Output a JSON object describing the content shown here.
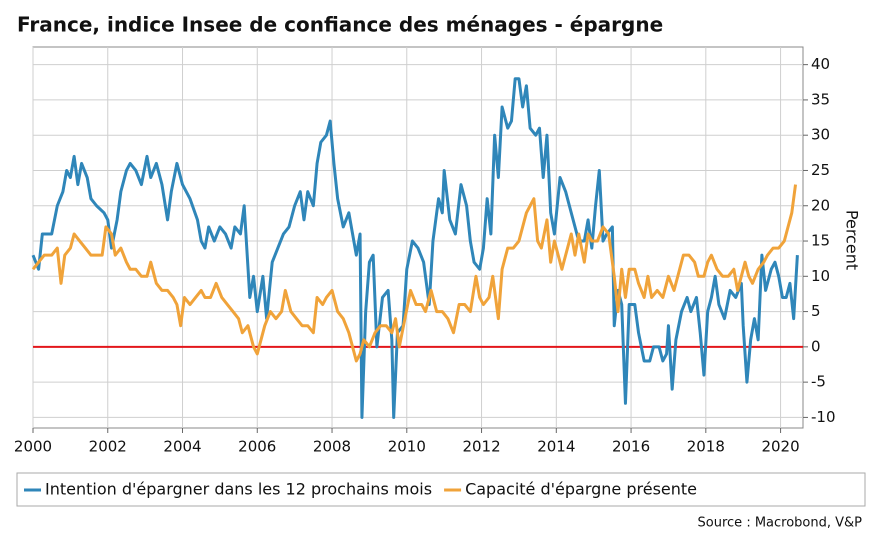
{
  "chart_data": {
    "type": "line",
    "title": "France, indice Insee de confiance des ménages - épargne",
    "y_axis_label": "Percent",
    "source": "Source : Macrobond, V&P",
    "xlim": [
      2000,
      2020.6
    ],
    "xticks": [
      2000,
      2002,
      2004,
      2006,
      2008,
      2010,
      2012,
      2014,
      2016,
      2018,
      2020
    ],
    "ylim": [
      -11.5,
      42.5
    ],
    "yticks": [
      -10,
      -5,
      0,
      5,
      10,
      15,
      20,
      25,
      30,
      35,
      40
    ],
    "grid": true,
    "y_axis_side": "right",
    "legend": "bottom",
    "reference_line": {
      "value": 0,
      "color": "#e3161b"
    },
    "series": [
      {
        "name": "Intention d'épargner dans les 12 prochains mois",
        "color": "#2f86b9",
        "x": [
          2000.0,
          2000.15,
          2000.25,
          2000.5,
          2000.65,
          2000.8,
          2000.9,
          2001.0,
          2001.1,
          2001.2,
          2001.3,
          2001.45,
          2001.55,
          2001.7,
          2001.9,
          2002.0,
          2002.1,
          2002.25,
          2002.35,
          2002.5,
          2002.6,
          2002.75,
          2002.9,
          2003.05,
          2003.15,
          2003.3,
          2003.45,
          2003.6,
          2003.7,
          2003.85,
          2004.0,
          2004.2,
          2004.4,
          2004.5,
          2004.6,
          2004.7,
          2004.85,
          2005.0,
          2005.15,
          2005.3,
          2005.4,
          2005.55,
          2005.65,
          2005.8,
          2005.9,
          2006.0,
          2006.15,
          2006.25,
          2006.4,
          2006.55,
          2006.7,
          2006.85,
          2007.0,
          2007.15,
          2007.25,
          2007.35,
          2007.5,
          2007.6,
          2007.7,
          2007.85,
          2007.95,
          2008.05,
          2008.15,
          2008.3,
          2008.45,
          2008.55,
          2008.65,
          2008.75,
          2008.8,
          2008.9,
          2009.0,
          2009.1,
          2009.2,
          2009.35,
          2009.5,
          2009.6,
          2009.65,
          2009.75,
          2009.9,
          2010.0,
          2010.15,
          2010.3,
          2010.45,
          2010.6,
          2010.7,
          2010.85,
          2010.95,
          2011.0,
          2011.15,
          2011.3,
          2011.45,
          2011.6,
          2011.7,
          2011.8,
          2011.95,
          2012.05,
          2012.15,
          2012.25,
          2012.35,
          2012.45,
          2012.55,
          2012.7,
          2012.8,
          2012.9,
          2013.0,
          2013.1,
          2013.2,
          2013.3,
          2013.45,
          2013.55,
          2013.65,
          2013.75,
          2013.85,
          2013.95,
          2014.1,
          2014.25,
          2014.35,
          2014.5,
          2014.6,
          2014.75,
          2014.85,
          2014.95,
          2015.05,
          2015.15,
          2015.25,
          2015.35,
          2015.5,
          2015.55,
          2015.65,
          2015.75,
          2015.85,
          2015.95,
          2016.1,
          2016.2,
          2016.35,
          2016.5,
          2016.6,
          2016.75,
          2016.85,
          2016.95,
          2017.0,
          2017.1,
          2017.2,
          2017.35,
          2017.5,
          2017.6,
          2017.75,
          2017.85,
          2017.95,
          2018.05,
          2018.15,
          2018.25,
          2018.35,
          2018.5,
          2018.65,
          2018.8,
          2018.95,
          2019.0,
          2019.1,
          2019.2,
          2019.3,
          2019.4,
          2019.5,
          2019.6,
          2019.75,
          2019.85,
          2019.95,
          2020.05,
          2020.15,
          2020.25,
          2020.35,
          2020.45
        ],
        "values": [
          13,
          11,
          16,
          16,
          20,
          22,
          25,
          24,
          27,
          23,
          26,
          24,
          21,
          20,
          19,
          18,
          14,
          18,
          22,
          25,
          26,
          25,
          23,
          27,
          24,
          26,
          23,
          18,
          22,
          26,
          23,
          21,
          18,
          15,
          14,
          17,
          15,
          17,
          16,
          14,
          17,
          16,
          20,
          7,
          10,
          5,
          10,
          4,
          12,
          14,
          16,
          17,
          20,
          22,
          18,
          22,
          20,
          26,
          29,
          30,
          32,
          26,
          21,
          17,
          19,
          16,
          13,
          16,
          -10,
          5,
          12,
          13,
          0,
          7,
          8,
          1,
          -10,
          2,
          3,
          11,
          15,
          14,
          12,
          6,
          15,
          21,
          19,
          25,
          18,
          16,
          23,
          20,
          15,
          12,
          11,
          14,
          21,
          16,
          30,
          24,
          34,
          31,
          32,
          38,
          38,
          34,
          37,
          31,
          30,
          31,
          24,
          30,
          19,
          16,
          24,
          22,
          20,
          17,
          15,
          15,
          18,
          14,
          20,
          25,
          15,
          16,
          17,
          3,
          8,
          6,
          -8,
          6,
          6,
          2,
          -2,
          -2,
          0,
          0,
          -2,
          -1,
          3,
          -6,
          1,
          5,
          7,
          5,
          7,
          2,
          -4,
          5,
          7,
          10,
          6,
          4,
          8,
          7,
          9,
          3,
          -5,
          1,
          4,
          1,
          13,
          8,
          11,
          12,
          10,
          7,
          7,
          9,
          4,
          13
        ]
      },
      {
        "name": "Capacité d'épargne présente",
        "color": "#f0a33a",
        "x": [
          2000.0,
          2000.15,
          2000.3,
          2000.5,
          2000.65,
          2000.75,
          2000.85,
          2001.0,
          2001.1,
          2001.25,
          2001.4,
          2001.55,
          2001.7,
          2001.85,
          2001.95,
          2002.1,
          2002.2,
          2002.35,
          2002.5,
          2002.6,
          2002.75,
          2002.9,
          2003.05,
          2003.15,
          2003.3,
          2003.45,
          2003.6,
          2003.75,
          2003.85,
          2003.95,
          2004.05,
          2004.2,
          2004.35,
          2004.5,
          2004.6,
          2004.75,
          2004.9,
          2005.05,
          2005.2,
          2005.35,
          2005.5,
          2005.6,
          2005.75,
          2005.9,
          2006.0,
          2006.1,
          2006.2,
          2006.35,
          2006.5,
          2006.65,
          2006.75,
          2006.9,
          2007.05,
          2007.2,
          2007.35,
          2007.5,
          2007.6,
          2007.75,
          2007.85,
          2008.0,
          2008.15,
          2008.3,
          2008.45,
          2008.55,
          2008.65,
          2008.75,
          2008.85,
          2009.0,
          2009.15,
          2009.3,
          2009.45,
          2009.6,
          2009.7,
          2009.8,
          2009.95,
          2010.1,
          2010.25,
          2010.4,
          2010.5,
          2010.65,
          2010.8,
          2010.95,
          2011.1,
          2011.25,
          2011.4,
          2011.55,
          2011.7,
          2011.85,
          2011.95,
          2012.05,
          2012.2,
          2012.3,
          2012.45,
          2012.55,
          2012.7,
          2012.85,
          2013.0,
          2013.1,
          2013.2,
          2013.3,
          2013.4,
          2013.5,
          2013.6,
          2013.75,
          2013.85,
          2013.95,
          2014.05,
          2014.15,
          2014.25,
          2014.4,
          2014.5,
          2014.6,
          2014.75,
          2014.85,
          2014.95,
          2015.1,
          2015.25,
          2015.4,
          2015.55,
          2015.65,
          2015.75,
          2015.85,
          2015.95,
          2016.1,
          2016.2,
          2016.35,
          2016.45,
          2016.55,
          2016.7,
          2016.85,
          2017.0,
          2017.15,
          2017.3,
          2017.4,
          2017.55,
          2017.7,
          2017.8,
          2017.95,
          2018.05,
          2018.15,
          2018.3,
          2018.45,
          2018.6,
          2018.75,
          2018.85,
          2018.95,
          2019.05,
          2019.15,
          2019.25,
          2019.4,
          2019.55,
          2019.65,
          2019.8,
          2019.95,
          2020.1,
          2020.2,
          2020.3,
          2020.4
        ],
        "values": [
          11,
          12,
          13,
          13,
          14,
          9,
          13,
          14,
          16,
          15,
          14,
          13,
          13,
          13,
          17,
          16,
          13,
          14,
          12,
          11,
          11,
          10,
          10,
          12,
          9,
          8,
          8,
          7,
          6,
          3,
          7,
          6,
          7,
          8,
          7,
          7,
          9,
          7,
          6,
          5,
          4,
          2,
          3,
          0,
          -1,
          1,
          3,
          5,
          4,
          5,
          8,
          5,
          4,
          3,
          3,
          2,
          7,
          6,
          7,
          8,
          5,
          4,
          2,
          0,
          -2,
          -1,
          1,
          0,
          2,
          3,
          3,
          2,
          4,
          0,
          4,
          8,
          6,
          6,
          5,
          8,
          5,
          5,
          4,
          2,
          6,
          6,
          5,
          10,
          7,
          6,
          7,
          10,
          4,
          11,
          14,
          14,
          15,
          17,
          19,
          20,
          21,
          15,
          14,
          18,
          12,
          15,
          13,
          11,
          13,
          16,
          13,
          16,
          12,
          16,
          15,
          15,
          17,
          16,
          10,
          5,
          11,
          7,
          11,
          11,
          9,
          7,
          10,
          7,
          8,
          7,
          10,
          8,
          11,
          13,
          13,
          12,
          10,
          10,
          12,
          13,
          11,
          10,
          10,
          11,
          8,
          10,
          12,
          10,
          9,
          11,
          12,
          13,
          14,
          14,
          15,
          17,
          19,
          23
        ]
      }
    ]
  }
}
